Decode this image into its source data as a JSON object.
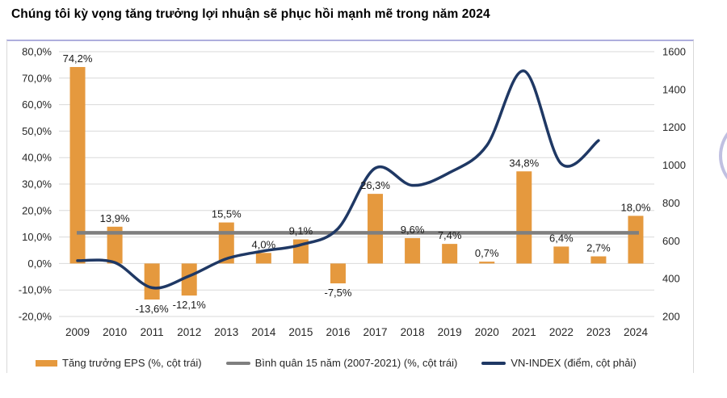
{
  "title": "Chúng tôi kỳ vọng tăng trưởng lợi nhuận sẽ phục hồi mạnh mẽ trong năm 2024",
  "colors": {
    "bar": "#E5993E",
    "average_line": "#7F7F7F",
    "vnindex_line": "#1F3864",
    "gridline": "#d9d9d9",
    "text": "#262626"
  },
  "chart_data": {
    "type": "bar+line combo",
    "title": "Chúng tôi kỳ vọng tăng trưởng lợi nhuận sẽ phục hồi mạnh mẽ trong năm 2024",
    "categories": [
      "2009",
      "2010",
      "2011",
      "2012",
      "2013",
      "2014",
      "2015",
      "2016",
      "2017",
      "2018",
      "2019",
      "2020",
      "2021",
      "2022",
      "2023",
      "2024"
    ],
    "left_axis": {
      "min": -20,
      "max": 80,
      "step": 10,
      "tick_labels": [
        "80,0%",
        "70,0%",
        "60,0%",
        "50,0%",
        "40,0%",
        "30,0%",
        "20,0%",
        "10,0%",
        "0,0%",
        "-10,0%",
        "-20,0%"
      ]
    },
    "right_axis": {
      "min": 200,
      "max": 1600,
      "step": 200,
      "tick_labels": [
        "1600",
        "1400",
        "1200",
        "1000",
        "800",
        "600",
        "400",
        "200"
      ]
    },
    "series": [
      {
        "name": "Tăng trưởng EPS (%, cột trái)",
        "type": "bar",
        "axis": "left",
        "color": "#E5993E",
        "values": [
          74.2,
          13.9,
          -13.6,
          -12.1,
          15.5,
          4.0,
          9.1,
          -7.5,
          26.3,
          9.6,
          7.4,
          0.7,
          34.8,
          6.4,
          2.7,
          18.0
        ],
        "labels": [
          "74,2%",
          "13,9%",
          "-13,6%",
          "-12,1%",
          "15,5%",
          "4,0%",
          "9,1%",
          "-7,5%",
          "26,3%",
          "9,6%",
          "7,4%",
          "0,7%",
          "34,8%",
          "6,4%",
          "2,7%",
          "18,0%"
        ]
      },
      {
        "name": "Bình quân 15 năm (2007-2021) (%, cột trái)",
        "type": "flat-line",
        "axis": "left",
        "color": "#7F7F7F",
        "value": 11.6
      },
      {
        "name": "VN-INDEX (điểm, cột phải)",
        "type": "smooth-line",
        "axis": "right",
        "color": "#1F3864",
        "x_categories": [
          "2009",
          "2010",
          "2011",
          "2012",
          "2013",
          "2014",
          "2015",
          "2016",
          "2017",
          "2018",
          "2019",
          "2020",
          "2021",
          "2022",
          "2023"
        ],
        "values": [
          495,
          485,
          352,
          414,
          505,
          546,
          579,
          665,
          984,
          893,
          961,
          1104,
          1498,
          1007,
          1130
        ]
      }
    ],
    "legend": [
      {
        "label": "Tăng trưởng EPS (%, cột trái)",
        "swatch": "bar",
        "color": "#E5993E"
      },
      {
        "label": "Bình quân 15 năm (2007-2021) (%, cột trái)",
        "swatch": "line",
        "color": "#7F7F7F"
      },
      {
        "label": "VN-INDEX (điểm, cột phải)",
        "swatch": "line",
        "color": "#1F3864"
      }
    ],
    "grid": "horizontal gridlines on",
    "legend_position": "bottom"
  }
}
